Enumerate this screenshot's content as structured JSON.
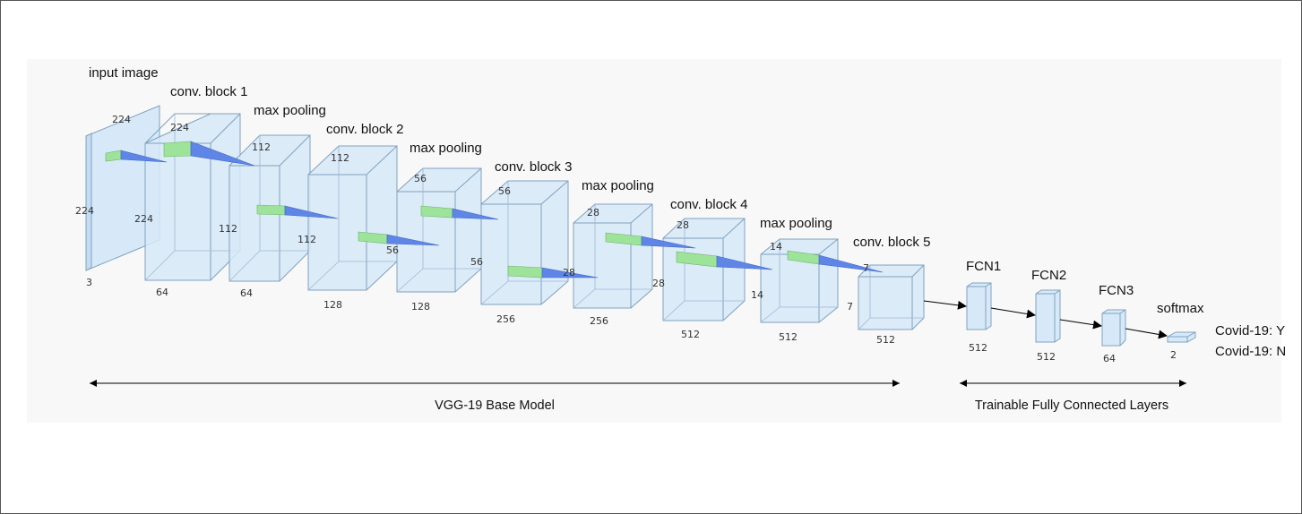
{
  "title_labels": {
    "input_image": "input image",
    "conv1": "conv. block 1",
    "pool1": "max pooling",
    "conv2": "conv. block 2",
    "pool2": "max pooling",
    "conv3": "conv. block 3",
    "pool3": "max pooling",
    "conv4": "conv. block 4",
    "pool4": "max pooling",
    "conv5": "conv. block 5",
    "fcn1": "FCN1",
    "fcn2": "FCN2",
    "fcn3": "FCN3",
    "softmax": "softmax"
  },
  "dims": {
    "input": {
      "top": "224",
      "side": "224",
      "depth": "3"
    },
    "conv1": {
      "top": "224",
      "side": "224",
      "depth": "64"
    },
    "pool1": {
      "top": "112",
      "side": "112",
      "depth": "64"
    },
    "conv2": {
      "top": "112",
      "side": "112",
      "depth": "128"
    },
    "pool2": {
      "top": "56",
      "side": "56",
      "depth": "128"
    },
    "conv3": {
      "top": "56",
      "side": "56",
      "depth": "256"
    },
    "pool3": {
      "top": "28",
      "side": "28",
      "depth": "256"
    },
    "conv4": {
      "top": "28",
      "side": "28",
      "depth": "512"
    },
    "pool4": {
      "top": "14",
      "side": "14",
      "depth": "512"
    },
    "conv5": {
      "top": "7",
      "side": "7",
      "depth": "512"
    },
    "fcn1": "512",
    "fcn2": "512",
    "fcn3": "64",
    "softmax": "2"
  },
  "outputs": [
    "Covid-19: Y",
    "Covid-19: N"
  ],
  "captions": {
    "base": "VGG-19 Base Model",
    "trainable": "Trainable Fully Connected Layers"
  },
  "colors": {
    "face": "#d7e9f8",
    "edge": "#7fa2bf",
    "kernel_green": "#9ee39a",
    "kernel_blue": "#5f86e6"
  }
}
